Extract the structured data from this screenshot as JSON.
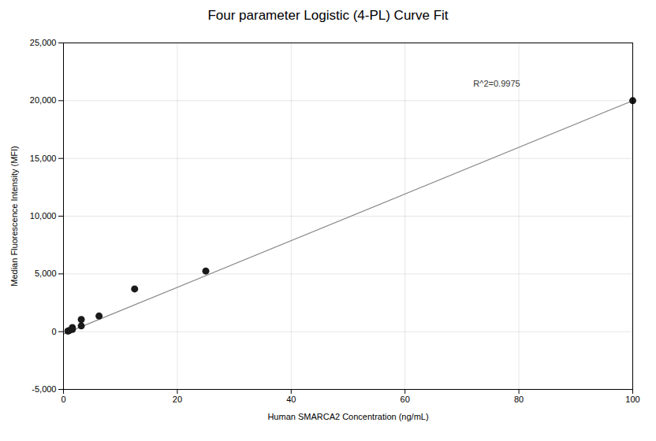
{
  "chart_data": {
    "type": "scatter",
    "title": "Four parameter Logistic (4-PL) Curve Fit",
    "xlabel": "Human SMARCA2 Concentration (ng/mL)",
    "ylabel": "Median Fluorescence Intensity (MFI)",
    "series": [
      {
        "type": "line",
        "color": "#888888",
        "x": [
          0,
          100
        ],
        "values": [
          -200,
          20000
        ]
      },
      {
        "type": "scatter",
        "color": "#1a1a1a",
        "x": [
          0.781,
          1.0,
          1.5625,
          1.5625,
          3.125,
          3.125,
          6.25,
          12.5,
          25.0,
          100.0
        ],
        "values": [
          50,
          100,
          200,
          350,
          500,
          1050,
          1350,
          3700,
          5250,
          20000
        ]
      }
    ],
    "xlim": [
      0,
      100
    ],
    "xticks": [
      0,
      20,
      40,
      60,
      80,
      100
    ],
    "ylim": [
      -5000,
      25000
    ],
    "yticks": [
      {
        "value": -5000,
        "label": "-5,000"
      },
      0,
      {
        "value": 5000,
        "label": "5,000"
      },
      {
        "value": 10000,
        "label": "10,000"
      },
      {
        "value": 15000,
        "label": "15,000"
      },
      {
        "value": 20000,
        "label": "20,000"
      },
      {
        "value": 25000,
        "label": "25,000"
      }
    ],
    "grid": true,
    "annotations": [
      {
        "text": "R^2=0.9975",
        "x": 72,
        "y": 21200
      }
    ]
  }
}
